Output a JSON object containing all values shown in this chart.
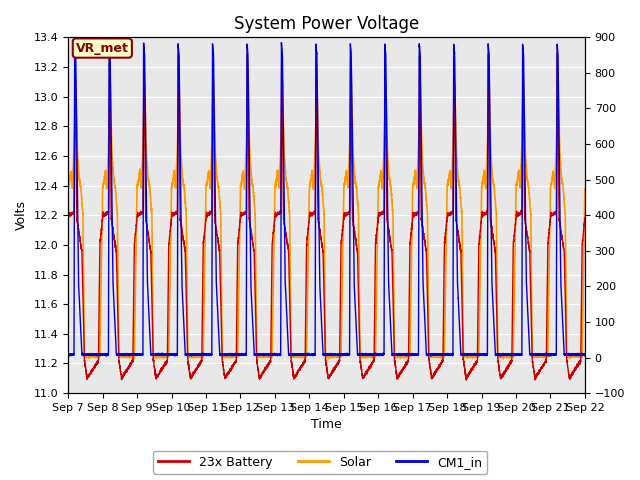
{
  "title": "System Power Voltage",
  "xlabel": "Time",
  "ylabel": "Volts",
  "ylim": [
    11.0,
    13.4
  ],
  "ylim2": [
    -100,
    900
  ],
  "yticks": [
    11.0,
    11.2,
    11.4,
    11.6,
    11.8,
    12.0,
    12.2,
    12.4,
    12.6,
    12.8,
    13.0,
    13.2,
    13.4
  ],
  "yticks2": [
    -100,
    0,
    100,
    200,
    300,
    400,
    500,
    600,
    700,
    800,
    900
  ],
  "n_cycles": 15,
  "colors": {
    "battery": "#cc0000",
    "solar": "#ff9900",
    "cm1": "#0000dd",
    "background": "#e8e8e8",
    "grid": "#ffffff"
  },
  "legend": [
    "23x Battery",
    "Solar",
    "CM1_in"
  ],
  "annotation_text": "VR_met",
  "annotation_color": "#880000",
  "annotation_bg": "#ffffcc",
  "xtick_labels": [
    "Sep 7",
    "Sep 8",
    "Sep 9",
    "Sep 10",
    "Sep 11",
    "Sep 12",
    "Sep 13",
    "Sep 14",
    "Sep 15",
    "Sep 16",
    "Sep 17",
    "Sep 18",
    "Sep 19",
    "Sep 20",
    "Sep 21",
    "Sep 22"
  ],
  "title_fontsize": 12,
  "label_fontsize": 9,
  "tick_fontsize": 8
}
